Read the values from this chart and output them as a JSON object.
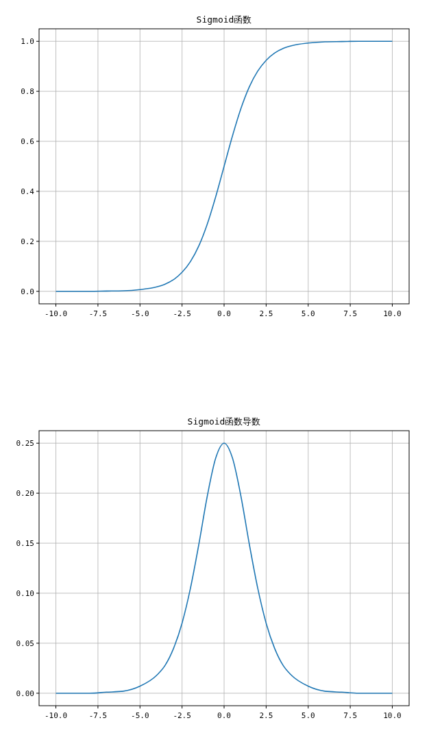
{
  "chart_data": [
    {
      "type": "line",
      "title": "Sigmoid函数",
      "x": [
        -10,
        -8,
        -7,
        -6,
        -5,
        -4,
        -3.5,
        -3,
        -2.5,
        -2,
        -1.5,
        -1,
        -0.5,
        0,
        0.5,
        1,
        1.5,
        2,
        2.5,
        3,
        3.5,
        4,
        5,
        6,
        7,
        8,
        10
      ],
      "series": [
        {
          "color": "#1f77b4",
          "values": [
            0.0,
            0.0,
            0.001,
            0.002,
            0.007,
            0.018,
            0.029,
            0.047,
            0.076,
            0.119,
            0.182,
            0.269,
            0.378,
            0.5,
            0.622,
            0.731,
            0.818,
            0.881,
            0.924,
            0.953,
            0.971,
            0.982,
            0.993,
            0.998,
            0.999,
            1.0,
            1.0
          ]
        }
      ],
      "xlim": [
        -11,
        11
      ],
      "ylim": [
        -0.05,
        1.05
      ],
      "xticks": [
        {
          "value": -10,
          "label": "-10.0"
        },
        {
          "value": -7.5,
          "label": "-7.5"
        },
        {
          "value": -5,
          "label": "-5.0"
        },
        {
          "value": -2.5,
          "label": "-2.5"
        },
        {
          "value": 0,
          "label": "0.0"
        },
        {
          "value": 2.5,
          "label": "2.5"
        },
        {
          "value": 5,
          "label": "5.0"
        },
        {
          "value": 7.5,
          "label": "7.5"
        },
        {
          "value": 10,
          "label": "10.0"
        }
      ],
      "yticks": [
        {
          "value": 0,
          "label": "0.0"
        },
        {
          "value": 0.2,
          "label": "0.2"
        },
        {
          "value": 0.4,
          "label": "0.4"
        },
        {
          "value": 0.6,
          "label": "0.6"
        },
        {
          "value": 0.8,
          "label": "0.8"
        },
        {
          "value": 1,
          "label": "1.0"
        }
      ],
      "grid": true
    },
    {
      "type": "line",
      "title": "Sigmoid函数导数",
      "x": [
        -10,
        -8,
        -7,
        -6,
        -5,
        -4,
        -3.5,
        -3,
        -2.5,
        -2,
        -1.5,
        -1,
        -0.5,
        0,
        0.5,
        1,
        1.5,
        2,
        2.5,
        3,
        3.5,
        4,
        5,
        6,
        7,
        8,
        10
      ],
      "series": [
        {
          "color": "#1f77b4",
          "values": [
            0.0,
            0.0,
            0.001,
            0.002,
            0.007,
            0.018,
            0.028,
            0.045,
            0.07,
            0.105,
            0.149,
            0.197,
            0.235,
            0.25,
            0.235,
            0.197,
            0.149,
            0.105,
            0.07,
            0.045,
            0.028,
            0.018,
            0.007,
            0.002,
            0.001,
            0.0,
            0.0
          ]
        }
      ],
      "xlim": [
        -11,
        11
      ],
      "ylim": [
        -0.0125,
        0.2625
      ],
      "xticks": [
        {
          "value": -10,
          "label": "-10.0"
        },
        {
          "value": -7.5,
          "label": "-7.5"
        },
        {
          "value": -5,
          "label": "-5.0"
        },
        {
          "value": -2.5,
          "label": "-2.5"
        },
        {
          "value": 0,
          "label": "0.0"
        },
        {
          "value": 2.5,
          "label": "2.5"
        },
        {
          "value": 5,
          "label": "5.0"
        },
        {
          "value": 7.5,
          "label": "7.5"
        },
        {
          "value": 10,
          "label": "10.0"
        }
      ],
      "yticks": [
        {
          "value": 0,
          "label": "0.00"
        },
        {
          "value": 0.05,
          "label": "0.05"
        },
        {
          "value": 0.1,
          "label": "0.10"
        },
        {
          "value": 0.15,
          "label": "0.15"
        },
        {
          "value": 0.2,
          "label": "0.20"
        },
        {
          "value": 0.25,
          "label": "0.25"
        }
      ],
      "grid": true
    }
  ]
}
